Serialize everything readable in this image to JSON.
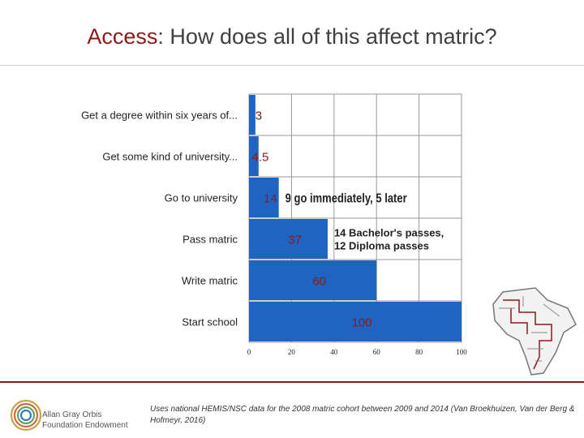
{
  "title": {
    "accent": "Access",
    "rest": ": How does all of this affect matric?"
  },
  "chart_data": {
    "type": "bar",
    "orientation": "horizontal",
    "categories": [
      "Get a degree within six years of...",
      "Get some kind of university...",
      "Go to university",
      "Pass matric",
      "Write matric",
      "Start school"
    ],
    "values": [
      3,
      4.5,
      14,
      37,
      60,
      100
    ],
    "value_labels": [
      "3",
      "4.5",
      "14",
      "37",
      "60",
      "100"
    ],
    "xlim": [
      0,
      100
    ],
    "xticks": [
      0,
      20,
      40,
      60,
      80,
      100
    ],
    "grid": true,
    "bar_color": "#1f64c0",
    "label_color": "#8b1a1a",
    "annotations": [
      {
        "category": "Go to university",
        "text": "9 go immediately, 5 later"
      },
      {
        "category": "Pass matric",
        "text": "14 Bachelor's passes,",
        "text2": "12 Diploma passes"
      }
    ]
  },
  "source": "Uses national HEMIS/NSC data for the 2008 matric cohort between 2009 and 2014 (Van Broekhuizen, Van der Berg & Hofmeyr, 2016)",
  "logo": {
    "line1": "Allan Gray Orbis",
    "line2": "Foundation Endowment"
  },
  "colors": {
    "accent": "#8b1a1a",
    "bar": "#1f64c0"
  }
}
